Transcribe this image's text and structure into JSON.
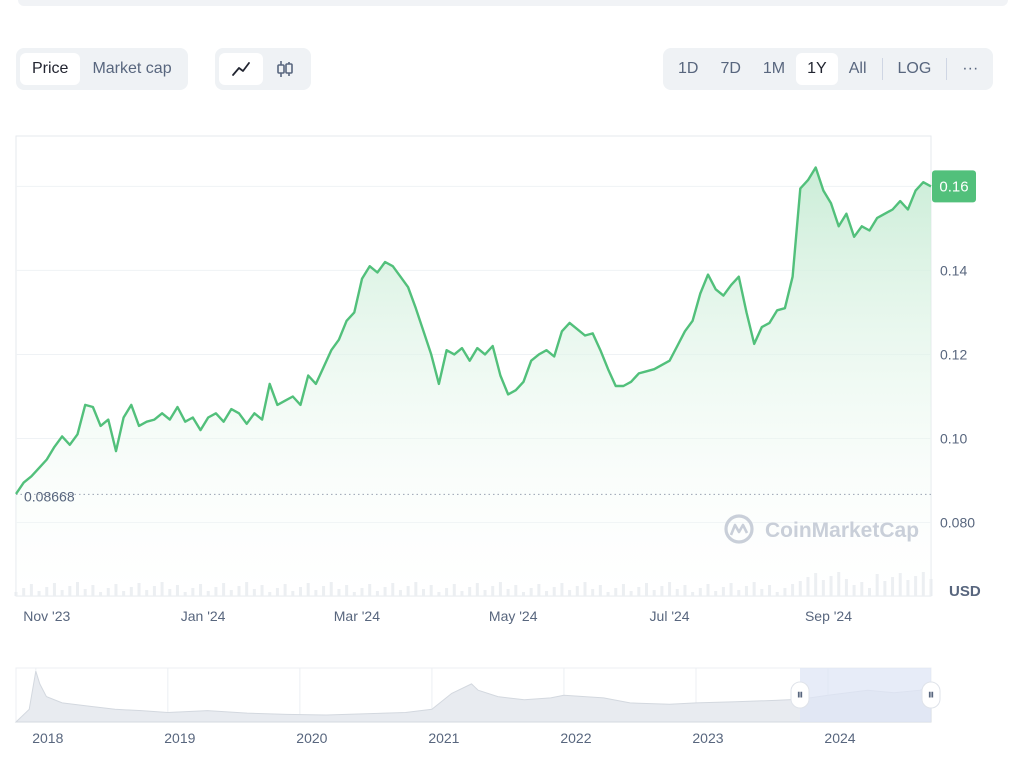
{
  "toolbar": {
    "metric_options": [
      "Price",
      "Market cap"
    ],
    "metric_selected": "Price",
    "chart_type_options": [
      {
        "name": "line-chart-icon",
        "active": true
      },
      {
        "name": "candlestick-icon",
        "active": false
      }
    ],
    "range_options": [
      "1D",
      "7D",
      "1M",
      "1Y",
      "All"
    ],
    "range_selected": "1Y",
    "log_label": "LOG",
    "more_label": "···"
  },
  "watermark": "CoinMarketCap",
  "colors": {
    "line": "#52c07b",
    "fill_top": "#c8ecd5",
    "price_badge": "#52c07b",
    "grid": "#eff2f5",
    "navigator_window": "#dfe5f5"
  },
  "chart_data": {
    "type": "line",
    "title": "",
    "xlabel": "",
    "ylabel": "USD",
    "ylim": [
      0.0625,
      0.172
    ],
    "x_ticks": [
      {
        "label": "Nov '23",
        "date": "2023-11-01"
      },
      {
        "label": "Jan '24",
        "date": "2024-01-01"
      },
      {
        "label": "Mar '24",
        "date": "2024-03-01"
      },
      {
        "label": "May '24",
        "date": "2024-05-01"
      },
      {
        "label": "Jul '24",
        "date": "2024-07-01"
      },
      {
        "label": "Sep '24",
        "date": "2024-09-01"
      }
    ],
    "y_ticks": [
      {
        "label": "0.080",
        "value": 0.08
      },
      {
        "label": "0.10",
        "value": 0.1
      },
      {
        "label": "0.12",
        "value": 0.12
      },
      {
        "label": "0.14",
        "value": 0.14
      }
    ],
    "current_price_label": "0.16",
    "current_price": 0.16,
    "baseline_label": "0.08668",
    "baseline_value": 0.08668,
    "series": [
      {
        "values": [
          [
            "2023-10-20",
            0.0868
          ],
          [
            "2023-10-23",
            0.0895
          ],
          [
            "2023-10-26",
            0.091
          ],
          [
            "2023-10-29",
            0.093
          ],
          [
            "2023-11-01",
            0.095
          ],
          [
            "2023-11-04",
            0.098
          ],
          [
            "2023-11-07",
            0.1005
          ],
          [
            "2023-11-10",
            0.0985
          ],
          [
            "2023-11-13",
            0.101
          ],
          [
            "2023-11-16",
            0.108
          ],
          [
            "2023-11-19",
            0.1075
          ],
          [
            "2023-11-22",
            0.103
          ],
          [
            "2023-11-25",
            0.1045
          ],
          [
            "2023-11-28",
            0.097
          ],
          [
            "2023-12-01",
            0.105
          ],
          [
            "2023-12-04",
            0.108
          ],
          [
            "2023-12-07",
            0.103
          ],
          [
            "2023-12-10",
            0.104
          ],
          [
            "2023-12-13",
            0.1045
          ],
          [
            "2023-12-16",
            0.106
          ],
          [
            "2023-12-19",
            0.1045
          ],
          [
            "2023-12-22",
            0.1075
          ],
          [
            "2023-12-25",
            0.104
          ],
          [
            "2023-12-28",
            0.105
          ],
          [
            "2023-12-31",
            0.102
          ],
          [
            "2024-01-03",
            0.105
          ],
          [
            "2024-01-06",
            0.106
          ],
          [
            "2024-01-09",
            0.104
          ],
          [
            "2024-01-12",
            0.107
          ],
          [
            "2024-01-15",
            0.106
          ],
          [
            "2024-01-18",
            0.1035
          ],
          [
            "2024-01-21",
            0.106
          ],
          [
            "2024-01-24",
            0.1045
          ],
          [
            "2024-01-27",
            0.113
          ],
          [
            "2024-01-30",
            0.108
          ],
          [
            "2024-02-02",
            0.109
          ],
          [
            "2024-02-05",
            0.11
          ],
          [
            "2024-02-08",
            0.108
          ],
          [
            "2024-02-11",
            0.115
          ],
          [
            "2024-02-14",
            0.113
          ],
          [
            "2024-02-17",
            0.117
          ],
          [
            "2024-02-20",
            0.121
          ],
          [
            "2024-02-23",
            0.1235
          ],
          [
            "2024-02-26",
            0.128
          ],
          [
            "2024-02-29",
            0.13
          ],
          [
            "2024-03-03",
            0.138
          ],
          [
            "2024-03-06",
            0.141
          ],
          [
            "2024-03-09",
            0.1395
          ],
          [
            "2024-03-12",
            0.142
          ],
          [
            "2024-03-15",
            0.141
          ],
          [
            "2024-03-18",
            0.1385
          ],
          [
            "2024-03-21",
            0.136
          ],
          [
            "2024-03-24",
            0.131
          ],
          [
            "2024-03-27",
            0.1255
          ],
          [
            "2024-03-30",
            0.12
          ],
          [
            "2024-04-02",
            0.113
          ],
          [
            "2024-04-05",
            0.121
          ],
          [
            "2024-04-08",
            0.12
          ],
          [
            "2024-04-11",
            0.1215
          ],
          [
            "2024-04-14",
            0.1185
          ],
          [
            "2024-04-17",
            0.1215
          ],
          [
            "2024-04-20",
            0.12
          ],
          [
            "2024-04-23",
            0.122
          ],
          [
            "2024-04-26",
            0.115
          ],
          [
            "2024-04-29",
            0.1105
          ],
          [
            "2024-05-02",
            0.1115
          ],
          [
            "2024-05-05",
            0.1135
          ],
          [
            "2024-05-08",
            0.1185
          ],
          [
            "2024-05-11",
            0.12
          ],
          [
            "2024-05-14",
            0.121
          ],
          [
            "2024-05-17",
            0.1195
          ],
          [
            "2024-05-20",
            0.1255
          ],
          [
            "2024-05-23",
            0.1275
          ],
          [
            "2024-05-26",
            0.126
          ],
          [
            "2024-05-29",
            0.1245
          ],
          [
            "2024-06-01",
            0.125
          ],
          [
            "2024-06-04",
            0.121
          ],
          [
            "2024-06-07",
            0.1165
          ],
          [
            "2024-06-10",
            0.1125
          ],
          [
            "2024-06-13",
            0.1125
          ],
          [
            "2024-06-16",
            0.1135
          ],
          [
            "2024-06-19",
            0.1155
          ],
          [
            "2024-06-22",
            0.116
          ],
          [
            "2024-06-25",
            0.1165
          ],
          [
            "2024-06-28",
            0.1175
          ],
          [
            "2024-07-01",
            0.1185
          ],
          [
            "2024-07-04",
            0.122
          ],
          [
            "2024-07-07",
            0.1255
          ],
          [
            "2024-07-10",
            0.128
          ],
          [
            "2024-07-13",
            0.1345
          ],
          [
            "2024-07-16",
            0.139
          ],
          [
            "2024-07-19",
            0.1355
          ],
          [
            "2024-07-22",
            0.134
          ],
          [
            "2024-07-25",
            0.1365
          ],
          [
            "2024-07-28",
            0.1385
          ],
          [
            "2024-07-31",
            0.13
          ],
          [
            "2024-08-03",
            0.1225
          ],
          [
            "2024-08-06",
            0.1265
          ],
          [
            "2024-08-09",
            0.1275
          ],
          [
            "2024-08-12",
            0.1305
          ],
          [
            "2024-08-15",
            0.131
          ],
          [
            "2024-08-18",
            0.1385
          ],
          [
            "2024-08-21",
            0.1595
          ],
          [
            "2024-08-24",
            0.1615
          ],
          [
            "2024-08-27",
            0.1645
          ],
          [
            "2024-08-30",
            0.159
          ],
          [
            "2024-09-02",
            0.156
          ],
          [
            "2024-09-05",
            0.1505
          ],
          [
            "2024-09-08",
            0.1535
          ],
          [
            "2024-09-11",
            0.148
          ],
          [
            "2024-09-14",
            0.1505
          ],
          [
            "2024-09-17",
            0.1495
          ],
          [
            "2024-09-20",
            0.1525
          ],
          [
            "2024-09-23",
            0.1535
          ],
          [
            "2024-09-26",
            0.1545
          ],
          [
            "2024-09-29",
            0.1565
          ],
          [
            "2024-10-02",
            0.1545
          ],
          [
            "2024-10-05",
            0.159
          ],
          [
            "2024-10-08",
            0.161
          ],
          [
            "2024-10-11",
            0.16
          ]
        ]
      }
    ]
  },
  "navigator": {
    "year_labels": [
      "2018",
      "2019",
      "2020",
      "2021",
      "2022",
      "2023",
      "2024"
    ],
    "years": [
      2018,
      2019,
      2020,
      2021,
      2022,
      2023,
      2024
    ],
    "range_start": "2023-10-20",
    "range_end": "2024-10-11",
    "handle_glyph": "⏸",
    "history": [
      [
        2017.95,
        0.02
      ],
      [
        2018.0,
        0.08
      ],
      [
        2018.03,
        0.06
      ],
      [
        2018.08,
        0.04
      ],
      [
        2018.2,
        0.03
      ],
      [
        2018.4,
        0.025
      ],
      [
        2018.6,
        0.02
      ],
      [
        2018.8,
        0.018
      ],
      [
        2019.0,
        0.015
      ],
      [
        2019.3,
        0.018
      ],
      [
        2019.6,
        0.014
      ],
      [
        2019.9,
        0.012
      ],
      [
        2020.2,
        0.011
      ],
      [
        2020.5,
        0.013
      ],
      [
        2020.8,
        0.015
      ],
      [
        2021.0,
        0.02
      ],
      [
        2021.15,
        0.045
      ],
      [
        2021.3,
        0.06
      ],
      [
        2021.35,
        0.05
      ],
      [
        2021.5,
        0.04
      ],
      [
        2021.7,
        0.035
      ],
      [
        2021.9,
        0.038
      ],
      [
        2022.0,
        0.042
      ],
      [
        2022.3,
        0.038
      ],
      [
        2022.5,
        0.03
      ],
      [
        2022.8,
        0.028
      ],
      [
        2023.0,
        0.03
      ],
      [
        2023.3,
        0.032
      ],
      [
        2023.6,
        0.034
      ],
      [
        2023.8,
        0.036
      ],
      [
        2024.0,
        0.042
      ],
      [
        2024.3,
        0.05
      ],
      [
        2024.5,
        0.046
      ],
      [
        2024.7,
        0.05
      ],
      [
        2024.78,
        0.06
      ]
    ]
  }
}
